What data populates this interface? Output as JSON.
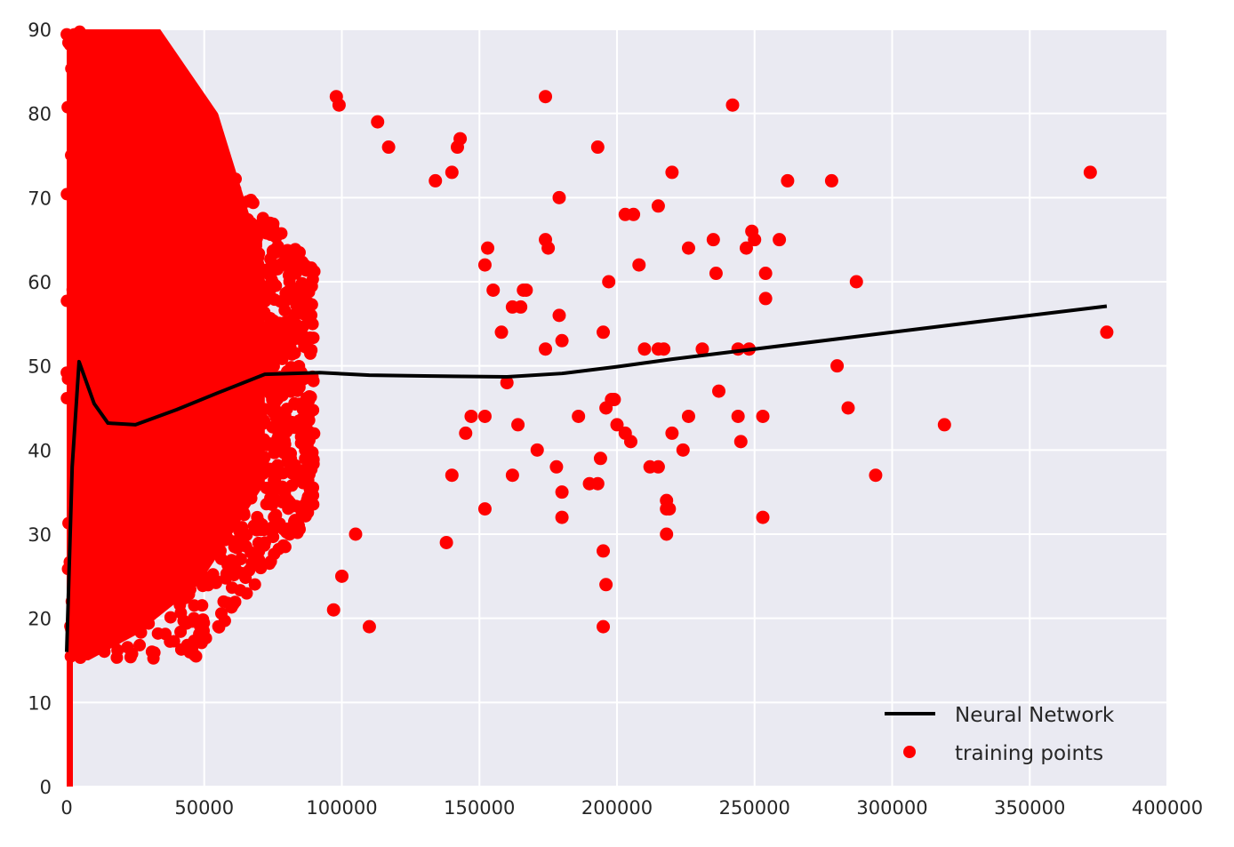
{
  "chart_data": {
    "type": "scatter",
    "title": "",
    "xlabel": "",
    "ylabel": "",
    "xlim": [
      0,
      400000
    ],
    "ylim": [
      0,
      90
    ],
    "x_ticks": [
      0,
      50000,
      100000,
      150000,
      200000,
      250000,
      300000,
      350000,
      400000
    ],
    "x_tick_labels": [
      "0",
      "50000",
      "100000",
      "150000",
      "200000",
      "250000",
      "300000",
      "350000",
      "400000"
    ],
    "y_ticks": [
      0,
      10,
      20,
      30,
      40,
      50,
      60,
      70,
      80,
      90
    ],
    "y_tick_labels": [
      "0",
      "10",
      "20",
      "30",
      "40",
      "50",
      "60",
      "70",
      "80",
      "90"
    ],
    "grid": true,
    "background_color": "#eaeaf2",
    "legend_position": "lower-right",
    "legend": [
      {
        "label": "Neural Network",
        "kind": "line",
        "color": "#000000"
      },
      {
        "label": "training points",
        "kind": "marker",
        "color": "#ff0000"
      }
    ],
    "series": [
      {
        "name": "Neural Network",
        "kind": "line",
        "color": "#000000",
        "x": [
          0,
          2000,
          4500,
          10000,
          15000,
          25000,
          40000,
          55000,
          72000,
          92000,
          110000,
          130000,
          160000,
          180000,
          200000,
          220000,
          250000,
          280000,
          310000,
          340000,
          378000
        ],
        "y": [
          16,
          38,
          50.5,
          45.5,
          43.2,
          43,
          44.8,
          46.8,
          49,
          49.2,
          48.9,
          48.8,
          48.7,
          49.1,
          49.9,
          50.8,
          52,
          53.2,
          54.4,
          55.6,
          57.1
        ]
      },
      {
        "name": "training points",
        "kind": "scatter",
        "color": "#ff0000",
        "dense_region": {
          "x_range": [
            0,
            90000
          ],
          "y_range": [
            15,
            90
          ]
        },
        "x": [
          174000,
          242000,
          98000,
          99000,
          113000,
          117000,
          143000,
          142000,
          134000,
          140000,
          179000,
          193000,
          220000,
          262000,
          278000,
          372000,
          203000,
          206000,
          215000,
          235000,
          226000,
          259000,
          249000,
          174000,
          175000,
          152000,
          153000,
          155000,
          167000,
          165000,
          236000,
          254000,
          287000,
          378000,
          280000,
          174000,
          195000,
          210000,
          215000,
          217000,
          231000,
          244000,
          248000,
          254000,
          179000,
          180000,
          186000,
          200000,
          203000,
          205000,
          145000,
          147000,
          152000,
          158000,
          160000,
          162000,
          164000,
          166000,
          171000,
          178000,
          180000,
          190000,
          212000,
          215000,
          218000,
          220000,
          224000,
          226000,
          237000,
          244000,
          245000,
          253000,
          284000,
          319000,
          294000,
          218000,
          219000,
          218000,
          253000,
          180000,
          195000,
          196000,
          195000,
          110000,
          105000,
          97000,
          100000,
          138000,
          140000,
          152000,
          162000,
          193000,
          197000,
          198000,
          199000,
          196000,
          194000,
          208000,
          250000,
          247000
        ],
        "y": [
          82,
          81,
          82,
          81,
          79,
          76,
          77,
          76,
          72,
          73,
          70,
          76,
          73,
          72,
          72,
          73,
          68,
          68,
          69,
          65,
          64,
          65,
          66,
          65,
          64,
          62,
          64,
          59,
          59,
          57,
          61,
          61,
          60,
          54,
          50,
          52,
          54,
          52,
          52,
          52,
          52,
          52,
          52,
          58,
          56,
          53,
          44,
          43,
          42,
          41,
          42,
          44,
          44,
          54,
          48,
          57,
          43,
          59,
          40,
          38,
          35,
          36,
          38,
          38,
          34,
          42,
          40,
          44,
          47,
          44,
          41,
          44,
          45,
          43,
          37,
          30,
          33,
          33,
          32,
          32,
          28,
          24,
          19,
          19,
          30,
          21,
          25,
          29,
          37,
          33,
          37,
          36,
          60,
          46,
          46,
          45,
          39,
          62,
          65,
          64
        ]
      }
    ]
  }
}
